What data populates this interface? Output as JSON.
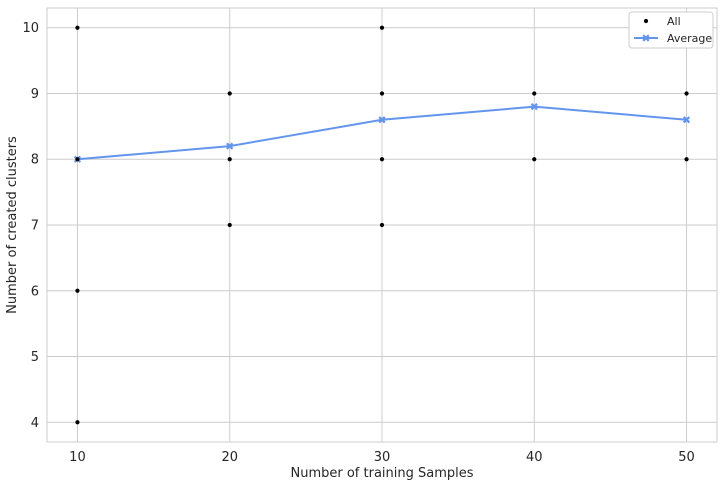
{
  "chart_data": {
    "type": "scatter",
    "xlabel": "Number of training Samples",
    "ylabel": "Number of created clusters",
    "xlim": [
      8,
      52
    ],
    "ylim": [
      3.7,
      10.3
    ],
    "xticks": [
      10,
      20,
      30,
      40,
      50
    ],
    "yticks": [
      4,
      5,
      6,
      7,
      8,
      9,
      10
    ],
    "grid": true,
    "legend_position": "top-right",
    "series": [
      {
        "name": "All",
        "kind": "scatter",
        "color": "#000000",
        "marker": "dot",
        "points": [
          [
            10,
            10
          ],
          [
            10,
            8
          ],
          [
            10,
            6
          ],
          [
            10,
            4
          ],
          [
            20,
            9
          ],
          [
            20,
            8
          ],
          [
            20,
            7
          ],
          [
            30,
            10
          ],
          [
            30,
            9
          ],
          [
            30,
            8
          ],
          [
            30,
            7
          ],
          [
            40,
            9
          ],
          [
            40,
            8
          ],
          [
            50,
            9
          ],
          [
            50,
            8
          ]
        ]
      },
      {
        "name": "Average",
        "kind": "line",
        "color": "#6495ed",
        "marker": "X",
        "x": [
          10,
          20,
          30,
          40,
          50
        ],
        "y": [
          8.0,
          8.2,
          8.6,
          8.8,
          8.6
        ]
      }
    ]
  }
}
